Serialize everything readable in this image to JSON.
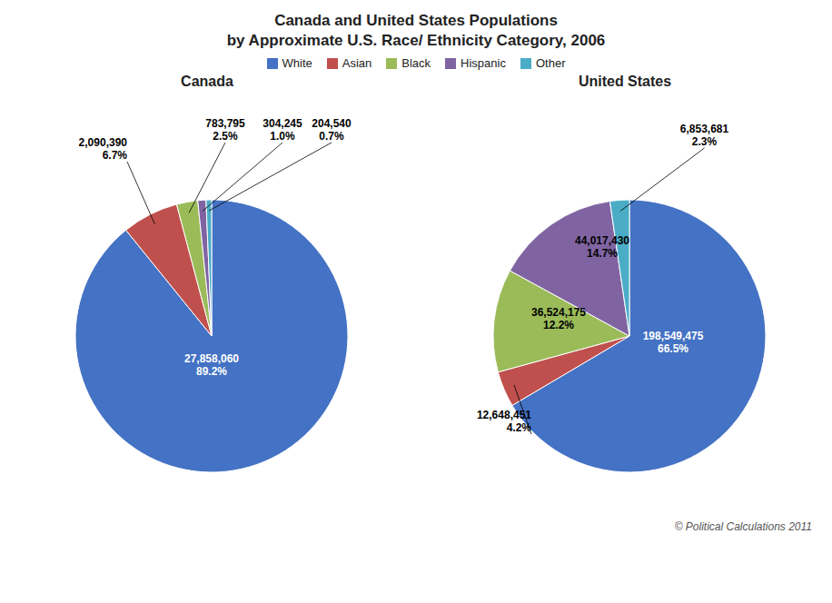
{
  "title": "Canada and United States Populations",
  "subtitle": "by Approximate U.S. Race/ Ethnicity Category, 2006",
  "annotations": [
    "© Political Calculations 2011"
  ],
  "legend": "top",
  "chart_data": [
    {
      "type": "pie",
      "title": "Canada",
      "categories": [
        "White",
        "Asian",
        "Black",
        "Hispanic",
        "Other"
      ],
      "values": [
        27858060,
        2090390,
        783795,
        304245,
        204540
      ],
      "value_labels": [
        "27,858,060\n89.2%",
        "2,090,390\n6.7%",
        "783,795\n2.5%",
        "304,245\n1.0%",
        "204,540\n0.7%"
      ],
      "colors": [
        "#4472C4",
        "#C0504D",
        "#9BBB59",
        "#8064A2",
        "#4BACC6"
      ],
      "data_labels": true
    },
    {
      "type": "pie",
      "title": "United States",
      "categories": [
        "White",
        "Asian",
        "Black",
        "Hispanic",
        "Other"
      ],
      "values": [
        198549475,
        12648451,
        36524175,
        44017430,
        6853681
      ],
      "value_labels": [
        "198,549,475\n66.5%",
        "12,648,451\n4.2%",
        "36,524,175\n12.2%",
        "44,017,430\n14.7%",
        "6,853,681\n2.3%"
      ],
      "colors": [
        "#4472C4",
        "#C0504D",
        "#9BBB59",
        "#8064A2",
        "#4BACC6"
      ],
      "data_labels": true
    }
  ]
}
